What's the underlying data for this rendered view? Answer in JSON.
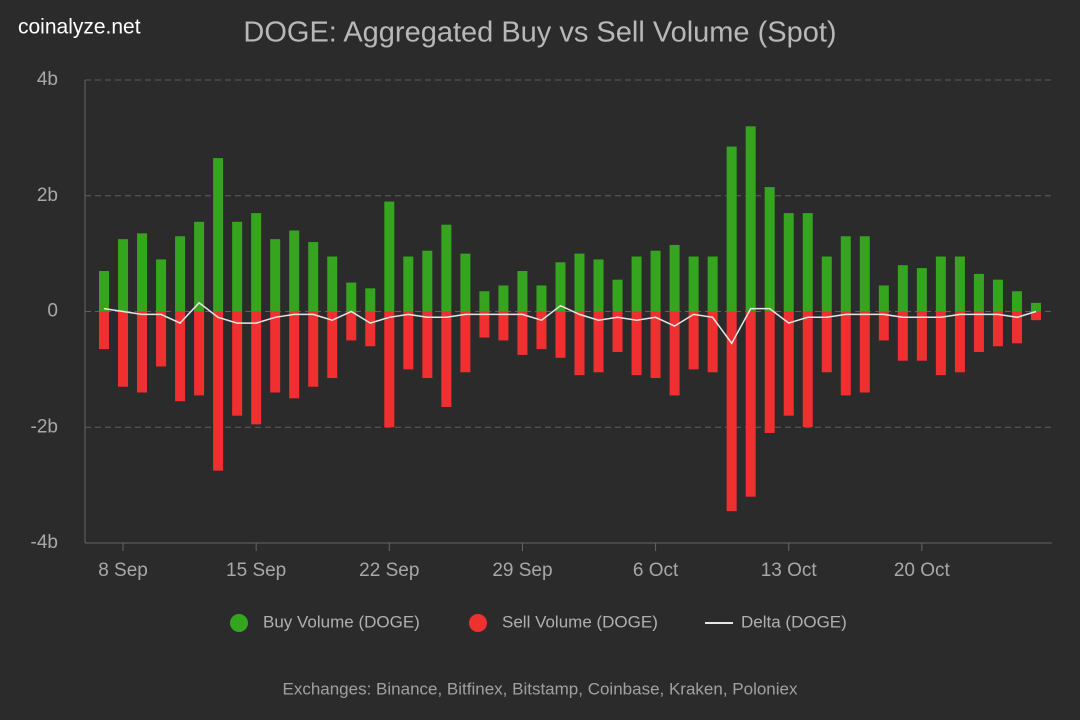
{
  "chart_data": {
    "type": "bar",
    "title": "DOGE: Aggregated Buy vs Sell Volume (Spot)",
    "watermark": "coinalyze.net",
    "footer": "Exchanges: Binance, Bitfinex, Bitstamp, Coinbase, Kraken, Poloniex",
    "categories": [
      null,
      "8 Sep",
      null,
      null,
      null,
      null,
      null,
      null,
      "15 Sep",
      null,
      null,
      null,
      null,
      null,
      null,
      "22 Sep",
      null,
      null,
      null,
      null,
      null,
      null,
      "29 Sep",
      null,
      null,
      null,
      null,
      null,
      null,
      "6 Oct",
      null,
      null,
      null,
      null,
      null,
      null,
      "13 Oct",
      null,
      null,
      null,
      null,
      null,
      null,
      "20 Oct",
      null,
      null,
      null,
      null,
      null,
      null
    ],
    "series": [
      {
        "name": "Buy Volume (DOGE)",
        "color": "#35a51f",
        "values": [
          0.7,
          1.25,
          1.35,
          0.9,
          1.3,
          1.55,
          2.65,
          1.55,
          1.7,
          1.25,
          1.4,
          1.2,
          0.95,
          0.5,
          0.4,
          1.9,
          0.95,
          1.05,
          1.5,
          1.0,
          0.35,
          0.45,
          0.7,
          0.45,
          0.85,
          1.0,
          0.9,
          0.55,
          0.95,
          1.05,
          1.15,
          0.95,
          0.95,
          2.85,
          3.2,
          2.15,
          1.7,
          1.7,
          0.95,
          1.3,
          1.3,
          0.45,
          0.8,
          0.75,
          0.95,
          0.95,
          0.65,
          0.55,
          0.35,
          0.15
        ]
      },
      {
        "name": "Sell Volume (DOGE)",
        "color": "#f03030",
        "values": [
          -0.65,
          -1.3,
          -1.4,
          -0.95,
          -1.55,
          -1.45,
          -2.75,
          -1.8,
          -1.95,
          -1.4,
          -1.5,
          -1.3,
          -1.15,
          -0.5,
          -0.6,
          -2.0,
          -1.0,
          -1.15,
          -1.65,
          -1.05,
          -0.45,
          -0.5,
          -0.75,
          -0.65,
          -0.8,
          -1.1,
          -1.05,
          -0.7,
          -1.1,
          -1.15,
          -1.45,
          -1.0,
          -1.05,
          -3.45,
          -3.2,
          -2.1,
          -1.8,
          -2.0,
          -1.05,
          -1.45,
          -1.4,
          -0.5,
          -0.85,
          -0.85,
          -1.1,
          -1.05,
          -0.7,
          -0.6,
          -0.55,
          -0.15
        ]
      },
      {
        "name": "Delta (DOGE)",
        "color": "#e6e6e6",
        "type": "line",
        "values": [
          0.05,
          0,
          -0.05,
          -0.05,
          -0.2,
          0.15,
          -0.1,
          -0.2,
          -0.2,
          -0.1,
          -0.05,
          -0.05,
          -0.15,
          0,
          -0.2,
          -0.1,
          -0.05,
          -0.1,
          -0.1,
          -0.05,
          -0.05,
          -0.05,
          -0.05,
          -0.15,
          0.1,
          -0.05,
          -0.15,
          -0.1,
          -0.15,
          -0.1,
          -0.25,
          -0.05,
          -0.1,
          -0.55,
          0.05,
          0.05,
          -0.2,
          -0.1,
          -0.1,
          -0.05,
          -0.05,
          -0.05,
          -0.1,
          -0.1,
          -0.1,
          -0.05,
          -0.05,
          -0.05,
          -0.1,
          0
        ]
      }
    ],
    "ylim": [
      -4,
      4
    ],
    "yticks": [
      {
        "value": -4,
        "label": "-4b"
      },
      {
        "value": -2,
        "label": "-2b"
      },
      0,
      {
        "value": 2,
        "label": "2b"
      },
      {
        "value": 4,
        "label": "4b"
      }
    ],
    "grid": true
  }
}
